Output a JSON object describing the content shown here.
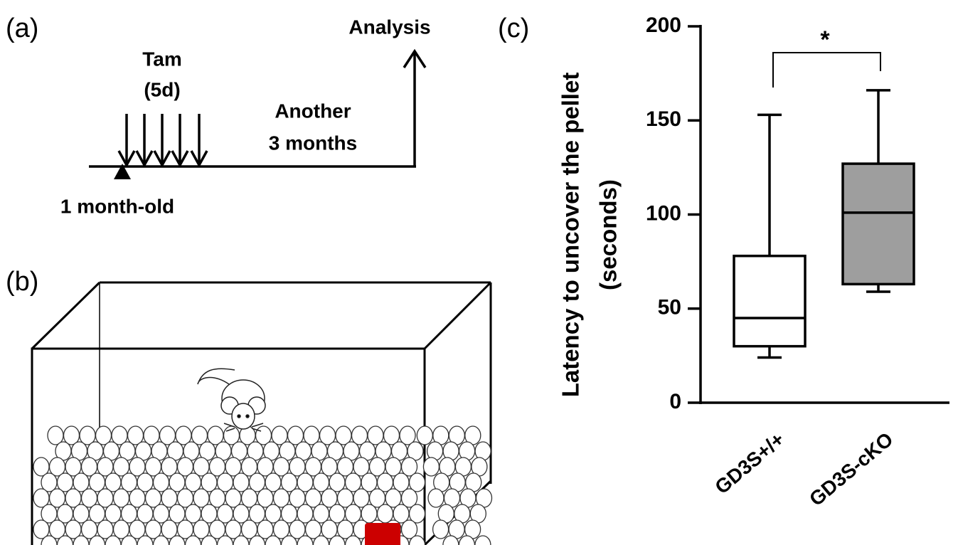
{
  "panels": {
    "a": "(a)",
    "b": "(b)",
    "c": "(c)"
  },
  "timeline": {
    "treatment": "Tam",
    "duration": "(5d)",
    "endpoint": "Analysis",
    "interval": [
      "Another",
      "3 months"
    ],
    "start": "1 month-old"
  },
  "chart_data": {
    "type": "box",
    "ylabel": [
      "Latency to uncover the pellet",
      "(seconds)"
    ],
    "categories": [
      "GD3S+/+",
      "GD3S-cKO"
    ],
    "min": [
      24,
      59
    ],
    "q1": [
      30,
      63
    ],
    "median": [
      45,
      101
    ],
    "q3": [
      78,
      127
    ],
    "max": [
      153,
      166
    ],
    "colors": [
      "#ffffff",
      "#9e9e9e"
    ],
    "ylim": [
      0,
      200
    ],
    "yticks": [
      0,
      50,
      100,
      150,
      200
    ],
    "annotation": "*"
  }
}
